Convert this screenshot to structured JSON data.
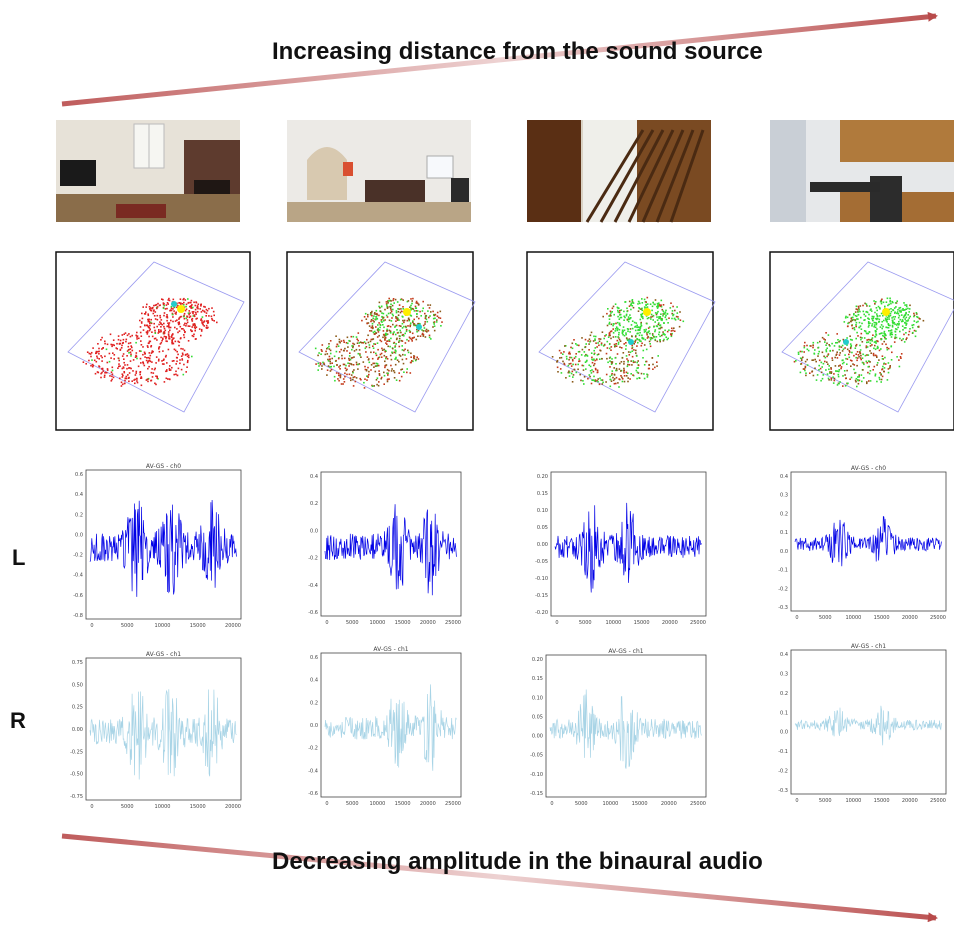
{
  "captions": {
    "top": "Increasing distance from the sound source",
    "bottom": "Decreasing amplitude in the binaural audio"
  },
  "channels": {
    "left": "L",
    "right": "R"
  },
  "colors": {
    "arrow": "#b84a4a",
    "left_wave": "#0000e6",
    "right_wave": "#a8d4e6",
    "scene_red": "#e02020",
    "scene_green": "#33dd33",
    "source_marker": "#ffee00",
    "listener_marker": "#22cccc"
  },
  "columns": [
    {
      "photo": "living-room-fireplace-photo",
      "left_plot": {
        "title": "AV-GS - ch0",
        "yticks": [
          "0.6",
          "0.4",
          "0.2",
          "0.0",
          "-0.2",
          "-0.4",
          "-0.6",
          "-0.8"
        ],
        "xticks": [
          "0",
          "5000",
          "10000",
          "15000",
          "20000"
        ]
      },
      "right_plot": {
        "title": "AV-GS - ch1",
        "yticks": [
          "0.75",
          "0.50",
          "0.25",
          "0.00",
          "-0.25",
          "-0.50",
          "-0.75"
        ],
        "xticks": [
          "0",
          "5000",
          "10000",
          "15000",
          "20000"
        ]
      }
    },
    {
      "photo": "living-room-sofa-photo",
      "left_plot": {
        "title": "",
        "yticks": [
          "0.4",
          "0.2",
          "0.0",
          "-0.2",
          "-0.4",
          "-0.6"
        ],
        "xticks": [
          "0",
          "5000",
          "10000",
          "15000",
          "20000",
          "25000"
        ]
      },
      "right_plot": {
        "title": "AV-GS - ch1",
        "yticks": [
          "0.6",
          "0.4",
          "0.2",
          "0.0",
          "-0.2",
          "-0.4",
          "-0.6"
        ],
        "xticks": [
          "0",
          "5000",
          "10000",
          "15000",
          "20000",
          "25000"
        ]
      }
    },
    {
      "photo": "staircase-photo",
      "left_plot": {
        "title": "",
        "yticks": [
          "0.20",
          "0.15",
          "0.10",
          "0.05",
          "0.00",
          "-0.05",
          "-0.10",
          "-0.15",
          "-0.20"
        ],
        "xticks": [
          "0",
          "5000",
          "10000",
          "15000",
          "20000",
          "25000"
        ]
      },
      "right_plot": {
        "title": "AV-GS - ch1",
        "yticks": [
          "0.20",
          "0.15",
          "0.10",
          "0.05",
          "0.00",
          "-0.05",
          "-0.10",
          "-0.15"
        ],
        "xticks": [
          "0",
          "5000",
          "10000",
          "15000",
          "20000",
          "25000"
        ]
      }
    },
    {
      "photo": "kitchen-photo",
      "left_plot": {
        "title": "AV-GS - ch0",
        "yticks": [
          "0.4",
          "0.3",
          "0.2",
          "0.1",
          "0.0",
          "-0.1",
          "-0.2",
          "-0.3"
        ],
        "xticks": [
          "0",
          "5000",
          "10000",
          "15000",
          "20000",
          "25000"
        ]
      },
      "right_plot": {
        "title": "AV-GS - ch1",
        "yticks": [
          "0.4",
          "0.3",
          "0.2",
          "0.1",
          "0.0",
          "-0.1",
          "-0.2",
          "-0.3"
        ],
        "xticks": [
          "0",
          "5000",
          "10000",
          "15000",
          "20000",
          "25000"
        ]
      }
    }
  ]
}
